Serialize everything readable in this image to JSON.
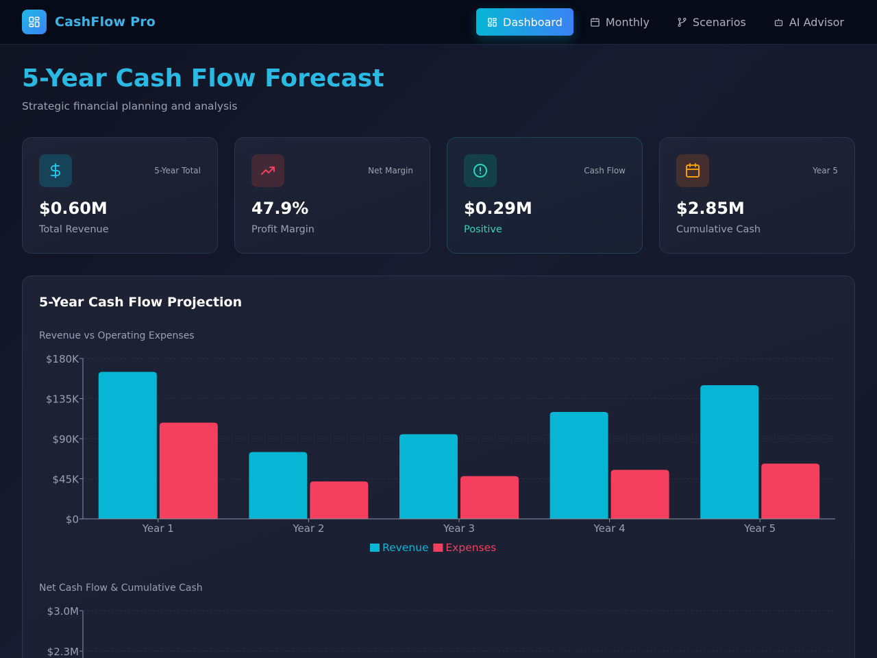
{
  "app": {
    "name": "CashFlow Pro",
    "brand_color": "#22b8e6",
    "logo_icon": "layout-grid-icon"
  },
  "nav": {
    "items": [
      {
        "label": "Dashboard",
        "icon": "layout-grid-icon",
        "active": true
      },
      {
        "label": "Monthly",
        "icon": "calendar-icon",
        "active": false
      },
      {
        "label": "Scenarios",
        "icon": "git-branch-icon",
        "active": false
      },
      {
        "label": "AI Advisor",
        "icon": "bot-icon",
        "active": false
      }
    ]
  },
  "header": {
    "title": "5-Year Cash Flow Forecast",
    "subtitle": "Strategic financial planning and analysis"
  },
  "kpis": [
    {
      "tag": "5-Year Total",
      "value": "$0.60M",
      "label": "Total Revenue",
      "icon": "dollar-icon",
      "accent": "#06b6d4"
    },
    {
      "tag": "Net Margin",
      "value": "47.9%",
      "label": "Profit Margin",
      "icon": "trending-up-icon",
      "accent": "#f43f5e"
    },
    {
      "tag": "Cash Flow",
      "value": "$0.29M",
      "label": "Positive",
      "icon": "alert-circle-icon",
      "accent": "#2dd4bf"
    },
    {
      "tag": "Year 5",
      "value": "$2.85M",
      "label": "Cumulative Cash",
      "icon": "calendar-icon",
      "accent": "#f59e0b"
    }
  ],
  "panel": {
    "title": "5-Year Cash Flow Projection"
  },
  "chart_data": [
    {
      "type": "bar",
      "title": "Revenue vs Operating Expenses",
      "categories": [
        "Year 1",
        "Year 2",
        "Year 3",
        "Year 4",
        "Year 5"
      ],
      "series": [
        {
          "name": "Revenue",
          "color": "#06b6d4",
          "values": [
            165000,
            75000,
            95000,
            120000,
            150000
          ]
        },
        {
          "name": "Expenses",
          "color": "#f43f5e",
          "values": [
            108000,
            42000,
            48000,
            55000,
            62000
          ]
        }
      ],
      "ylim": [
        0,
        180000
      ],
      "yticks": [
        0,
        45000,
        90000,
        135000,
        180000
      ],
      "ytick_labels": [
        "$0",
        "$45K",
        "$90K",
        "$135K",
        "$180K"
      ],
      "legend": "bottom-center",
      "grid": true
    },
    {
      "type": "line",
      "title": "Net Cash Flow & Cumulative Cash",
      "yticks_visible": [
        2300000,
        3000000
      ],
      "ytick_labels_visible": [
        "$2.3M",
        "$3.0M"
      ],
      "ylim": [
        0,
        3000000
      ],
      "grid": true
    }
  ]
}
